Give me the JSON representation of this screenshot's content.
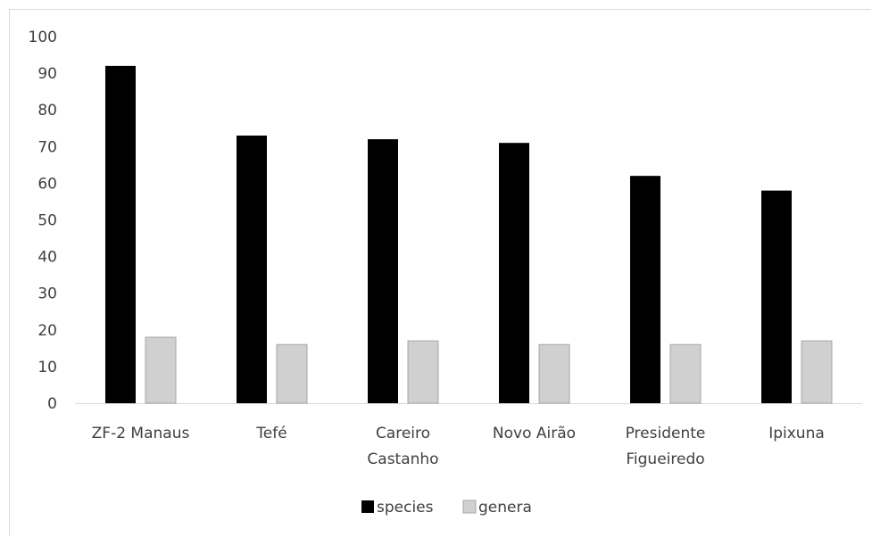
{
  "chart_data": {
    "type": "bar",
    "title": "",
    "xlabel": "",
    "ylabel": "",
    "ylim": [
      0,
      100
    ],
    "yticks": [
      0,
      10,
      20,
      30,
      40,
      50,
      60,
      70,
      80,
      90,
      100
    ],
    "grid": false,
    "legend_position": "bottom",
    "categories": [
      [
        "ZF-2 Manaus"
      ],
      [
        "Tefé"
      ],
      [
        "Careiro",
        "Castanho"
      ],
      [
        "Novo Airão"
      ],
      [
        "Presidente",
        "Figueiredo"
      ],
      [
        "Ipixuna"
      ]
    ],
    "series": [
      {
        "name": "species",
        "color": "#000000",
        "values": [
          92,
          73,
          72,
          71,
          62,
          58
        ]
      },
      {
        "name": "genera",
        "color": "#d0d0d0",
        "values": [
          18,
          16,
          17,
          16,
          16,
          17
        ]
      }
    ]
  }
}
